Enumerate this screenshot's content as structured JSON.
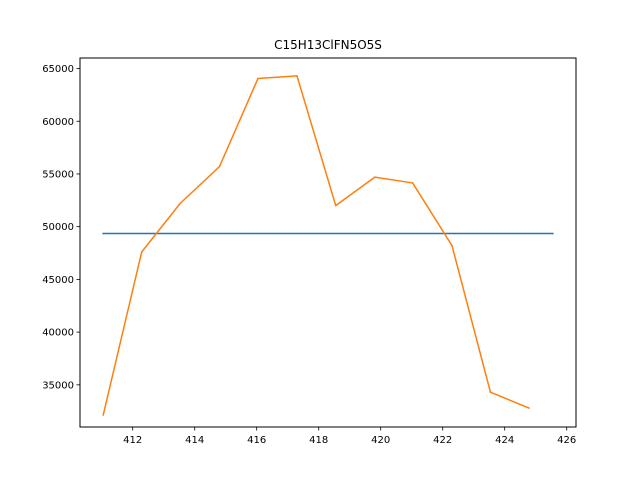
{
  "chart_data": {
    "type": "line",
    "title": "C15H13ClFN5O5S",
    "xlabel": "",
    "ylabel": "",
    "xlim": [
      410.3,
      426.3
    ],
    "ylim": [
      31000,
      66000
    ],
    "xticks": [
      412,
      414,
      416,
      418,
      420,
      422,
      424,
      426
    ],
    "yticks": [
      35000,
      40000,
      45000,
      50000,
      55000,
      60000,
      65000
    ],
    "grid": false,
    "legend": "none",
    "series": [
      {
        "color": "#1f77b4",
        "x": [
          411.05,
          425.55
        ],
        "y": [
          49350,
          49350
        ]
      },
      {
        "color": "#ff7f0e",
        "x": [
          411.05,
          412.29,
          413.53,
          414.8,
          416.04,
          417.3,
          418.55,
          419.81,
          421.03,
          422.3,
          423.54,
          424.78
        ],
        "y": [
          32150,
          47600,
          52200,
          55700,
          64050,
          64300,
          52000,
          54700,
          54150,
          48200,
          34300,
          32800
        ]
      }
    ]
  }
}
